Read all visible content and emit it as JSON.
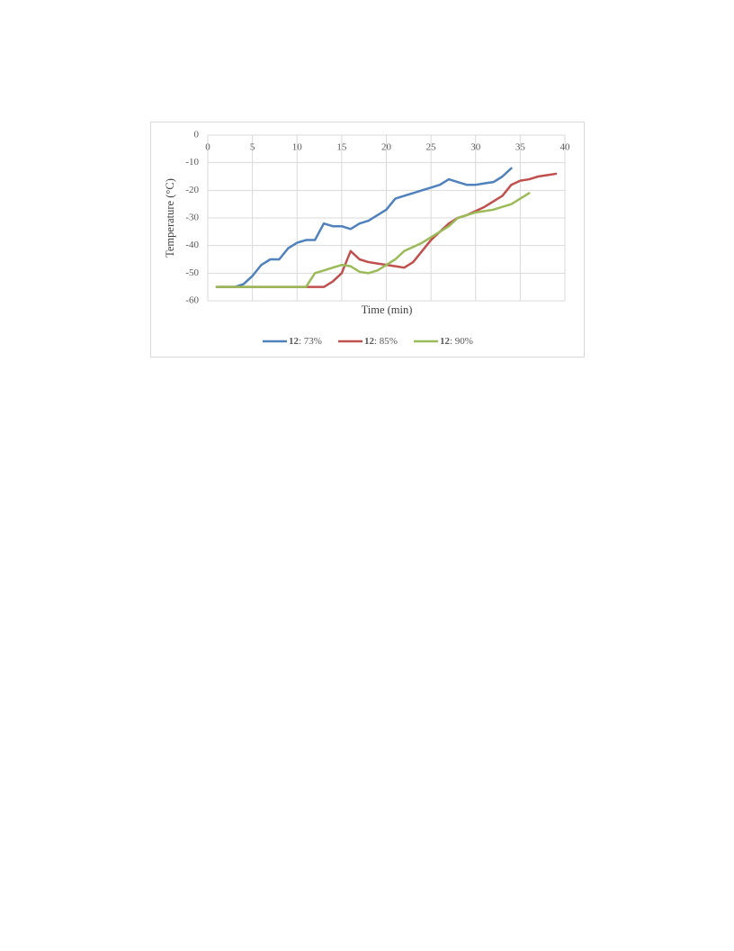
{
  "chart_data": {
    "type": "line",
    "x_label": "Time (min)",
    "y_label": "Temperature (°C)",
    "xlim": [
      0,
      40
    ],
    "xticks": [
      0,
      5,
      10,
      15,
      20,
      25,
      30,
      35,
      40
    ],
    "ylim": [
      -60,
      0
    ],
    "yticks": [
      0,
      -10,
      -20,
      -30,
      -40,
      -50,
      -60
    ],
    "grid": true,
    "legend": "bottom",
    "series": [
      {
        "name": "12: 73%",
        "color": "#4f81bd",
        "x": [
          1,
          2,
          3,
          4,
          5,
          6,
          7,
          8,
          9,
          10,
          11,
          12,
          13,
          14,
          15,
          16,
          17,
          18,
          19,
          20,
          21,
          22,
          23,
          24,
          25,
          26,
          27,
          28,
          29,
          30,
          31,
          32,
          33,
          34
        ],
        "values": [
          -55,
          -55,
          -55,
          -54,
          -51,
          -47,
          -45,
          -45,
          -41,
          -39,
          -38,
          -38,
          -32,
          -33,
          -33,
          -34,
          -32,
          -31,
          -29,
          -27,
          -23,
          -22,
          -21,
          -20,
          -19,
          -18,
          -16,
          -17,
          -18,
          -18,
          -17.5,
          -17,
          -15,
          -12
        ]
      },
      {
        "name": "12: 85%",
        "color": "#c0504d",
        "x": [
          1,
          2,
          3,
          4,
          5,
          6,
          7,
          8,
          9,
          10,
          11,
          12,
          13,
          14,
          15,
          16,
          17,
          18,
          19,
          20,
          21,
          22,
          23,
          24,
          25,
          26,
          27,
          28,
          29,
          30,
          31,
          32,
          33,
          34,
          35,
          36,
          37,
          38,
          39
        ],
        "values": [
          -55,
          -55,
          -55,
          -55,
          -55,
          -55,
          -55,
          -55,
          -55,
          -55,
          -55,
          -55,
          -55,
          -53,
          -50,
          -42,
          -45,
          -46,
          -46.5,
          -47,
          -47.5,
          -48,
          -46,
          -42,
          -38,
          -35,
          -32,
          -30,
          -29,
          -27.5,
          -26,
          -24,
          -22,
          -18,
          -16.5,
          -16,
          -15,
          -14.5,
          -14
        ]
      },
      {
        "name": "12: 90%",
        "color": "#9bbb59",
        "x": [
          1,
          2,
          3,
          4,
          5,
          6,
          7,
          8,
          9,
          10,
          11,
          12,
          13,
          14,
          15,
          16,
          17,
          18,
          19,
          20,
          21,
          22,
          23,
          24,
          25,
          26,
          27,
          28,
          29,
          30,
          31,
          32,
          33,
          34,
          35,
          36
        ],
        "values": [
          -55,
          -55,
          -55,
          -55,
          -55,
          -55,
          -55,
          -55,
          -55,
          -55,
          -55,
          -50,
          -49,
          -48,
          -47,
          -47.5,
          -49.5,
          -50,
          -49,
          -47,
          -45,
          -42,
          -40.5,
          -39,
          -37,
          -35,
          -33,
          -30,
          -29,
          -28,
          -27.5,
          -27,
          -26,
          -25,
          -23,
          -21
        ]
      }
    ]
  }
}
